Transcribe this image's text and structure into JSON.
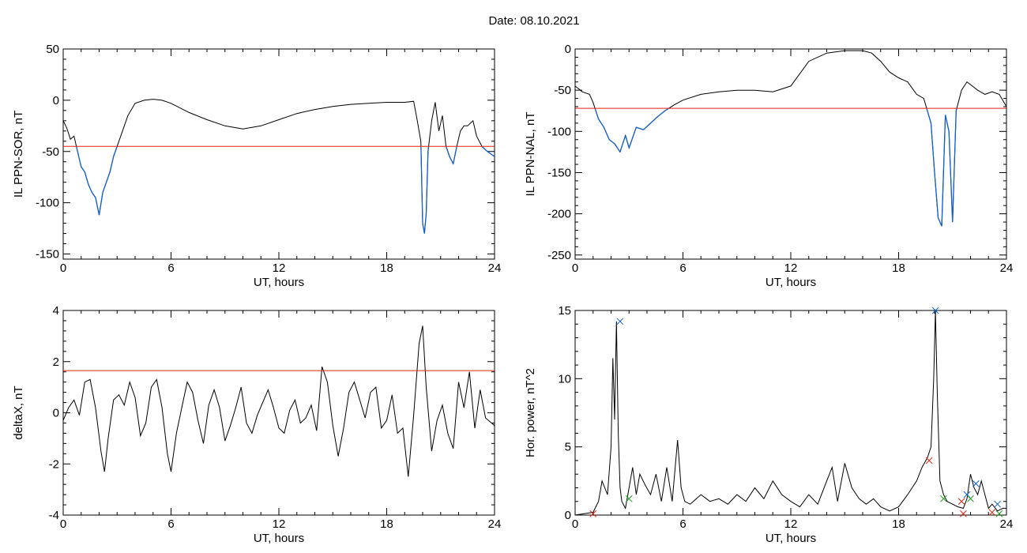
{
  "page": {
    "title": "Date:  08.10.2021"
  },
  "colors": {
    "trace": "#000000",
    "highlight": "#1060d0",
    "threshold": "#e02010",
    "marker_blue": "#1060d0",
    "marker_red": "#e02010",
    "marker_green": "#20a020"
  },
  "chart_data": [
    {
      "id": "sor",
      "type": "line",
      "xlabel": "UT, hours",
      "ylabel": "IL PPN-SOR, nT",
      "xlim": [
        0,
        24
      ],
      "ylim": [
        -155,
        50
      ],
      "xticks": [
        0,
        6,
        12,
        18,
        24
      ],
      "yticks": [
        50,
        0,
        -50,
        -100,
        -150
      ],
      "threshold": -45,
      "series": [
        {
          "x": [
            0,
            0.2,
            0.4,
            0.6,
            0.8,
            1.0,
            1.2,
            1.4,
            1.6,
            1.8,
            2.0,
            2.2,
            2.4,
            2.6,
            2.8,
            3.2,
            3.6,
            4.0,
            4.5,
            5.0,
            5.5,
            6.0,
            7.0,
            8.0,
            9.0,
            10.0,
            11.0,
            12.0,
            13.0,
            14.0,
            15.0,
            16.0,
            17.0,
            18.0,
            19.0,
            19.5,
            19.7,
            19.9,
            20.0,
            20.1,
            20.2,
            20.3,
            20.5,
            20.7,
            20.9,
            21.1,
            21.3,
            21.5,
            21.7,
            21.9,
            22.1,
            22.3,
            22.5,
            22.8,
            23.0,
            23.3,
            23.6,
            24.0
          ],
          "y": [
            -20,
            -27,
            -38,
            -35,
            -50,
            -65,
            -70,
            -82,
            -90,
            -95,
            -112,
            -90,
            -80,
            -70,
            -55,
            -35,
            -15,
            -3,
            0,
            1,
            0,
            -3,
            -12,
            -19,
            -25,
            -28,
            -25,
            -19,
            -13,
            -9,
            -6,
            -4,
            -3,
            -2,
            -2,
            -1,
            -20,
            -40,
            -120,
            -130,
            -110,
            -50,
            -20,
            -2,
            -30,
            -15,
            -45,
            -55,
            -62,
            -45,
            -30,
            -25,
            -25,
            -20,
            -35,
            -45,
            -50,
            -55
          ],
          "highlight_below_threshold": true
        }
      ]
    },
    {
      "id": "nal",
      "type": "line",
      "xlabel": "UT, hours",
      "ylabel": "IL PPN-NAL, nT",
      "xlim": [
        0,
        24
      ],
      "ylim": [
        -255,
        0
      ],
      "xticks": [
        0,
        6,
        12,
        18,
        24
      ],
      "yticks": [
        0,
        -50,
        -100,
        -150,
        -200,
        -250
      ],
      "threshold": -72,
      "series": [
        {
          "x": [
            0,
            0.4,
            0.8,
            1.0,
            1.3,
            1.6,
            1.9,
            2.2,
            2.5,
            2.8,
            3.0,
            3.4,
            3.8,
            4.2,
            4.6,
            5.0,
            5.5,
            6.0,
            7.0,
            8.0,
            9.0,
            10.0,
            11.0,
            12.0,
            12.5,
            13.0,
            14.0,
            15.0,
            16.0,
            16.5,
            17.0,
            17.5,
            18.0,
            18.5,
            19.0,
            19.4,
            19.8,
            20.0,
            20.2,
            20.4,
            20.6,
            20.8,
            21.0,
            21.2,
            21.5,
            21.8,
            22.1,
            22.4,
            22.8,
            23.2,
            23.6,
            24.0
          ],
          "y": [
            -45,
            -52,
            -55,
            -65,
            -85,
            -95,
            -110,
            -115,
            -125,
            -105,
            -120,
            -95,
            -98,
            -90,
            -82,
            -75,
            -68,
            -62,
            -55,
            -52,
            -50,
            -50,
            -52,
            -45,
            -30,
            -15,
            -5,
            -2,
            -2,
            -5,
            -15,
            -28,
            -35,
            -40,
            -55,
            -60,
            -90,
            -150,
            -205,
            -215,
            -80,
            -100,
            -210,
            -75,
            -50,
            -40,
            -45,
            -50,
            -55,
            -52,
            -55,
            -70
          ],
          "highlight_below_threshold": true
        }
      ]
    },
    {
      "id": "deltax",
      "type": "line",
      "xlabel": "UT, hours",
      "ylabel": "deltaX, nT",
      "xlim": [
        0,
        24
      ],
      "ylim": [
        -4,
        4
      ],
      "xticks": [
        0,
        6,
        12,
        18,
        24
      ],
      "yticks": [
        4,
        2,
        0,
        -2,
        -4
      ],
      "threshold": 1.65,
      "series": [
        {
          "x": [
            0,
            0.3,
            0.6,
            0.9,
            1.2,
            1.5,
            1.8,
            2.1,
            2.3,
            2.5,
            2.8,
            3.1,
            3.4,
            3.7,
            4.0,
            4.3,
            4.6,
            4.9,
            5.2,
            5.5,
            5.8,
            6.0,
            6.3,
            6.6,
            6.9,
            7.2,
            7.5,
            7.8,
            8.1,
            8.4,
            8.7,
            9.0,
            9.3,
            9.6,
            9.9,
            10.2,
            10.5,
            10.8,
            11.1,
            11.4,
            11.7,
            12.0,
            12.3,
            12.6,
            12.9,
            13.2,
            13.5,
            13.8,
            14.1,
            14.4,
            14.7,
            15.0,
            15.3,
            15.6,
            15.9,
            16.2,
            16.5,
            16.8,
            17.1,
            17.4,
            17.7,
            18.0,
            18.3,
            18.6,
            18.9,
            19.2,
            19.5,
            19.8,
            20.0,
            20.2,
            20.5,
            20.8,
            21.1,
            21.4,
            21.7,
            22.0,
            22.3,
            22.6,
            22.9,
            23.2,
            23.5,
            24.0
          ],
          "y": [
            -0.3,
            0.2,
            0.5,
            -0.1,
            1.2,
            1.3,
            0.2,
            -1.5,
            -2.3,
            -1.0,
            0.5,
            0.7,
            0.3,
            1.2,
            0.6,
            -0.9,
            -0.4,
            1.0,
            1.3,
            0.2,
            -1.6,
            -2.3,
            -0.8,
            0.2,
            1.2,
            0.8,
            -0.3,
            -1.2,
            0.3,
            0.9,
            0.2,
            -1.1,
            -0.5,
            0.2,
            1.0,
            -0.4,
            -0.8,
            -0.1,
            0.4,
            0.9,
            0.2,
            -0.6,
            -0.8,
            0.1,
            0.5,
            -0.4,
            -0.2,
            0.3,
            -0.7,
            1.8,
            1.2,
            -0.5,
            -1.7,
            -0.6,
            0.8,
            1.2,
            0.5,
            -0.2,
            0.8,
            1.0,
            -0.6,
            -0.3,
            0.7,
            -0.8,
            -0.6,
            -2.5,
            -0.1,
            2.7,
            3.4,
            1.0,
            -1.5,
            -0.3,
            0.3,
            -0.8,
            -1.4,
            1.2,
            0.2,
            1.6,
            -0.6,
            0.9,
            -0.2,
            -0.5
          ],
          "highlight_below_threshold": false
        }
      ]
    },
    {
      "id": "power",
      "type": "line",
      "xlabel": "UT, hours",
      "ylabel": "Hor. power, nT^2",
      "xlim": [
        0,
        24
      ],
      "ylim": [
        0,
        15
      ],
      "xticks": [
        0,
        6,
        12,
        18,
        24
      ],
      "yticks": [
        15,
        10,
        5,
        0
      ],
      "threshold": null,
      "series": [
        {
          "x": [
            0,
            0.5,
            1.0,
            1.3,
            1.5,
            1.8,
            2.0,
            2.1,
            2.2,
            2.3,
            2.4,
            2.5,
            2.6,
            2.8,
            3.0,
            3.2,
            3.4,
            3.6,
            3.9,
            4.2,
            4.5,
            4.8,
            5.1,
            5.4,
            5.7,
            5.9,
            6.1,
            6.4,
            7.0,
            7.5,
            8.0,
            8.5,
            9.0,
            9.5,
            10.0,
            10.5,
            11.0,
            11.5,
            12.0,
            12.5,
            13.0,
            13.5,
            14.0,
            14.3,
            14.6,
            15.0,
            15.4,
            15.8,
            16.2,
            16.6,
            17.0,
            17.5,
            18.0,
            18.5,
            19.0,
            19.3,
            19.6,
            19.8,
            19.95,
            20.05,
            20.15,
            20.3,
            20.5,
            20.7,
            21.0,
            21.3,
            21.6,
            21.8,
            22.0,
            22.2,
            22.4,
            22.6,
            22.8,
            23.0,
            23.2,
            23.5,
            23.8,
            24.0
          ],
          "y": [
            0,
            0.1,
            0.2,
            1.0,
            2.5,
            1.5,
            5.0,
            11.5,
            7.0,
            14.2,
            6.0,
            2.0,
            1.0,
            0.5,
            2.0,
            3.5,
            1.5,
            3.0,
            2.2,
            1.5,
            3.0,
            1.0,
            3.5,
            1.0,
            5.5,
            2.0,
            1.0,
            0.8,
            1.5,
            1.0,
            1.2,
            0.8,
            1.5,
            1.0,
            2.0,
            1.2,
            2.5,
            1.5,
            1.0,
            0.6,
            1.5,
            0.8,
            2.5,
            3.5,
            1.0,
            3.8,
            2.0,
            1.2,
            0.8,
            1.2,
            0.6,
            0.3,
            0.6,
            1.5,
            2.5,
            3.5,
            4.2,
            5.0,
            10.0,
            15.0,
            9.0,
            2.5,
            1.5,
            1.0,
            0.8,
            0.6,
            0.5,
            1.2,
            3.0,
            2.0,
            1.5,
            2.5,
            1.5,
            0.5,
            0.8,
            0.3,
            0.5,
            0.5
          ],
          "highlight_below_threshold": false
        }
      ],
      "markers": [
        {
          "x": 1.0,
          "y": 0.1,
          "color": "marker_red"
        },
        {
          "x": 2.5,
          "y": 14.2,
          "color": "marker_blue"
        },
        {
          "x": 3.0,
          "y": 1.2,
          "color": "marker_green"
        },
        {
          "x": 19.7,
          "y": 4.0,
          "color": "marker_red"
        },
        {
          "x": 20.05,
          "y": 15.0,
          "color": "marker_blue"
        },
        {
          "x": 20.5,
          "y": 1.2,
          "color": "marker_green"
        },
        {
          "x": 21.5,
          "y": 1.0,
          "color": "marker_red"
        },
        {
          "x": 21.6,
          "y": 0.1,
          "color": "marker_red"
        },
        {
          "x": 21.8,
          "y": 1.5,
          "color": "marker_blue"
        },
        {
          "x": 22.0,
          "y": 1.2,
          "color": "marker_green"
        },
        {
          "x": 22.3,
          "y": 2.3,
          "color": "marker_blue"
        },
        {
          "x": 23.2,
          "y": 0.2,
          "color": "marker_red"
        },
        {
          "x": 23.5,
          "y": 0.8,
          "color": "marker_blue"
        },
        {
          "x": 23.6,
          "y": 0.1,
          "color": "marker_green"
        }
      ]
    }
  ]
}
